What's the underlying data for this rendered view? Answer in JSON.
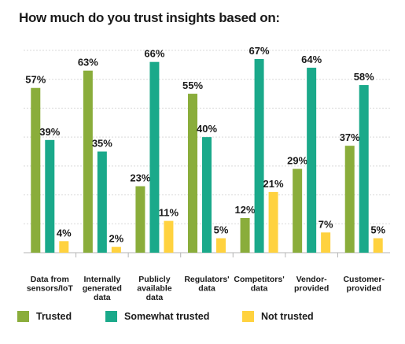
{
  "colors": {
    "trusted": "#8aad3b",
    "somewhat": "#1aa98a",
    "not": "#ffd23f",
    "grid": "#d9d9d9",
    "axis": "#b5b5b5"
  },
  "chart_data": {
    "type": "bar",
    "title": "How much do you trust insights based on:",
    "categories": [
      [
        "Data from",
        "sensors/IoT"
      ],
      [
        "Internally",
        "generated",
        "data"
      ],
      [
        "Publicly",
        "available",
        "data"
      ],
      [
        "Regulators'",
        "data"
      ],
      [
        "Competitors'",
        "data"
      ],
      [
        "Vendor-",
        "provided"
      ],
      [
        "Customer-",
        "provided"
      ]
    ],
    "series": [
      {
        "name": "Trusted",
        "values": [
          57,
          63,
          23,
          55,
          12,
          29,
          37
        ]
      },
      {
        "name": "Somewhat trusted",
        "values": [
          39,
          35,
          66,
          40,
          67,
          64,
          58
        ]
      },
      {
        "name": "Not trusted",
        "values": [
          4,
          2,
          11,
          5,
          21,
          7,
          5
        ]
      }
    ],
    "value_suffix": "%",
    "ylim": [
      0,
      70
    ],
    "grid": true,
    "legend": "bottom"
  }
}
